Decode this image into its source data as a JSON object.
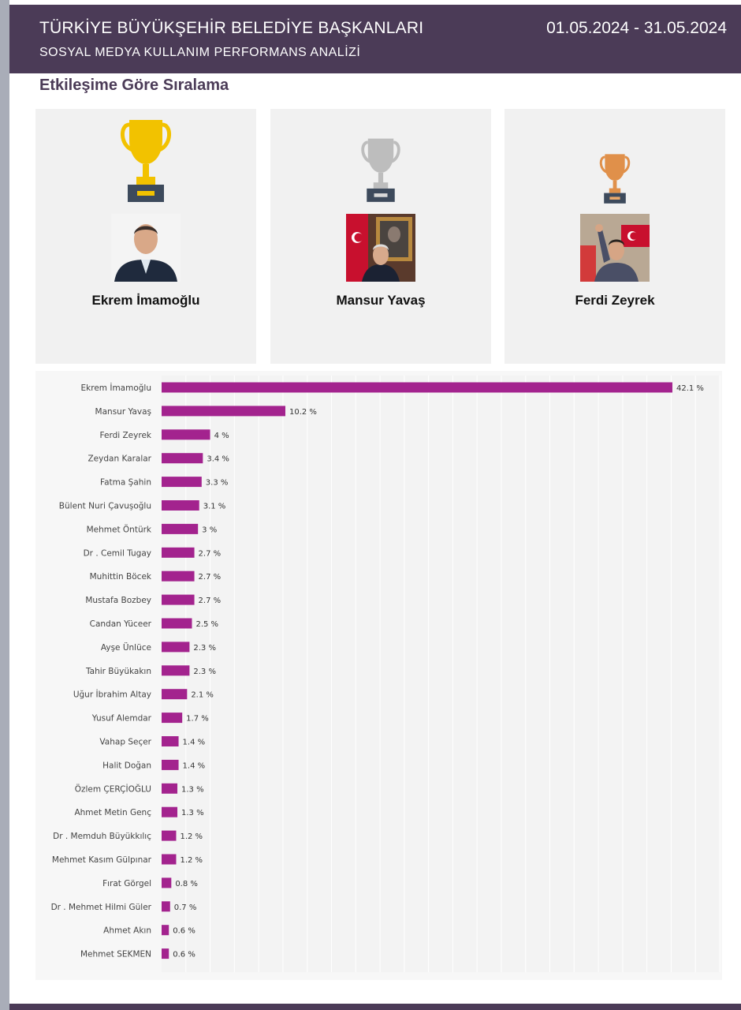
{
  "header": {
    "title": "TÜRKİYE BÜYÜKŞEHİR BELEDİYE BAŞKANLARI",
    "subtitle": "SOSYAL MEDYA KULLANIM PERFORMANS ANALİZİ",
    "date_range": "01.05.2024 - 31.05.2024"
  },
  "section_title": "Etkileşime Göre Sıralama",
  "podium": [
    {
      "rank": 1,
      "name": "Ekrem İmamoğlu",
      "trophy": "gold-trophy-icon",
      "color": "#f2c200"
    },
    {
      "rank": 2,
      "name": "Mansur Yavaş",
      "trophy": "silver-trophy-icon",
      "color": "#bdbdbd"
    },
    {
      "rank": 3,
      "name": "Ferdi Zeyrek",
      "trophy": "bronze-trophy-icon",
      "color": "#e0904a"
    }
  ],
  "colors": {
    "bar": "#a3238e",
    "header": "#4b3b57"
  },
  "chart_data": {
    "type": "bar",
    "orientation": "horizontal",
    "categories": [
      "Ekrem İmamoğlu",
      "Mansur Yavaş",
      "Ferdi Zeyrek",
      "Zeydan Karalar",
      "Fatma Şahin",
      "Bülent Nuri Çavuşoğlu",
      "Mehmet Öntürk",
      "Dr . Cemil Tugay",
      "Muhittin Böcek",
      "Mustafa Bozbey",
      "Candan Yüceer",
      "Ayşe Ünlüce",
      "Tahir Büyükakın",
      "Uğur İbrahim Altay",
      "Yusuf Alemdar",
      "Vahap Seçer",
      "Halit Doğan",
      "Özlem ÇERÇİOĞLU",
      "Ahmet Metin Genç",
      "Dr . Memduh Büyükkılıç",
      "Mehmet Kasım Gülpınar",
      "Fırat Görgel",
      "Dr . Mehmet Hilmi Güler",
      "Ahmet Akın",
      "Mehmet SEKMEN"
    ],
    "values": [
      42.1,
      10.2,
      4,
      3.4,
      3.3,
      3.1,
      3,
      2.7,
      2.7,
      2.7,
      2.5,
      2.3,
      2.3,
      2.1,
      1.7,
      1.4,
      1.4,
      1.3,
      1.3,
      1.2,
      1.2,
      0.8,
      0.7,
      0.6,
      0.6
    ],
    "value_labels": [
      "42.1 %",
      "10.2 %",
      "4 %",
      "3.4 %",
      "3.3 %",
      "3.1 %",
      "3 %",
      "2.7 %",
      "2.7 %",
      "2.7 %",
      "2.5 %",
      "2.3 %",
      "2.3 %",
      "2.1 %",
      "1.7 %",
      "1.4 %",
      "1.4 %",
      "1.3 %",
      "1.3 %",
      "1.2 %",
      "1.2 %",
      "0.8 %",
      "0.7 %",
      "0.6 %",
      "0.6 %"
    ],
    "xlim": [
      0,
      46
    ],
    "grid": true,
    "legend": "none"
  }
}
